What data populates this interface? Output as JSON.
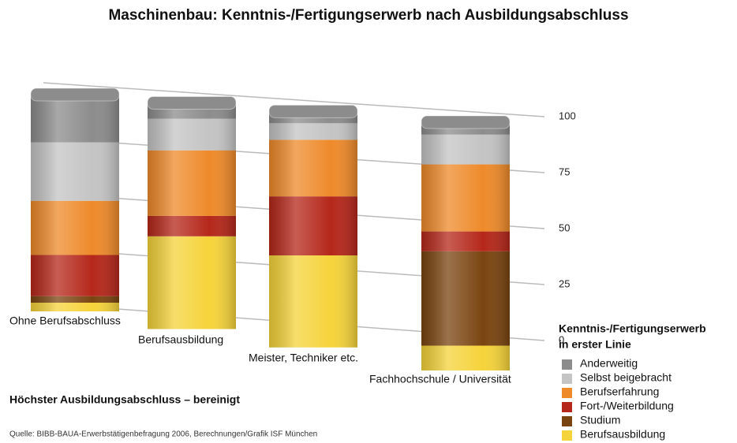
{
  "chart_data": {
    "type": "stacked-bar",
    "title": "Maschinenbau: Kenntnis-/Fertigungserwerb nach Ausbildungsabschluss",
    "x_label": "Höchster Ausbildungsabschluss – bereinigt",
    "source": "Quelle: BIBB-BAUA-Erwerbstätigenbefragung 2006, Berechnungen/Grafik ISF München",
    "legend_title": [
      "Kenntnis-/Fertigungserwerb",
      "in erster Linie"
    ],
    "categories": [
      "Ohne Berufsabschluss",
      "Berufsausbildung",
      "Meister, Techniker etc.",
      "Fachhochschule / Universität"
    ],
    "series": [
      {
        "name": "Berufsausbildung",
        "color": "#f5d33a",
        "values": [
          4,
          41,
          39,
          10
        ]
      },
      {
        "name": "Studium",
        "color": "#7a4410",
        "values": [
          3,
          0,
          0,
          38
        ]
      },
      {
        "name": "Fort-/Weiterbildung",
        "color": "#b5271a",
        "values": [
          19,
          9,
          25,
          8
        ]
      },
      {
        "name": "Berufserfahrung",
        "color": "#ee8a2a",
        "values": [
          25,
          29,
          24,
          27
        ]
      },
      {
        "name": "Selbst beigebracht",
        "color": "#c4c4c4",
        "values": [
          27,
          14,
          7,
          12
        ]
      },
      {
        "name": "Anderweitig",
        "color": "#8c8c8c",
        "values": [
          22,
          7,
          5,
          5
        ]
      }
    ],
    "ylim": [
      0,
      100
    ],
    "yticks": [
      0,
      25,
      50,
      75,
      100
    ],
    "grid": true
  }
}
